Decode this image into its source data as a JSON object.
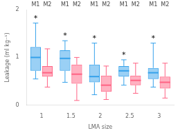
{
  "chart_data": {
    "type": "box",
    "xlabel": "LMA size",
    "ylabel": "Leakage (ml kg⁻¹)",
    "categories": [
      "1",
      "1.5",
      "2",
      "2.5",
      "3"
    ],
    "series": [
      {
        "name": "M1",
        "whislo": [
          0.55,
          0.48,
          0.22,
          0.42,
          0.38
        ],
        "q1": [
          0.72,
          0.72,
          0.48,
          0.6,
          0.55
        ],
        "med": [
          1.0,
          0.98,
          0.6,
          0.72,
          0.68
        ],
        "q3": [
          1.22,
          1.15,
          0.85,
          0.82,
          0.78
        ],
        "whishi": [
          1.72,
          1.35,
          1.3,
          0.95,
          1.3
        ]
      },
      {
        "name": "M2",
        "whislo": [
          0.38,
          0.1,
          0.12,
          0.25,
          0.15
        ],
        "q1": [
          0.6,
          0.45,
          0.28,
          0.42,
          0.35
        ],
        "med": [
          0.68,
          0.65,
          0.42,
          0.52,
          0.48
        ],
        "q3": [
          0.82,
          0.85,
          0.62,
          0.62,
          0.6
        ],
        "whishi": [
          1.18,
          1.0,
          0.82,
          0.88,
          0.88
        ]
      }
    ],
    "annotations": [
      {
        "text": "*",
        "series": "M1",
        "category": "1"
      },
      {
        "text": "*",
        "series": "M1",
        "category": "1.5"
      },
      {
        "text": "*",
        "series": "M1",
        "category": "2"
      },
      {
        "text": "*",
        "series": "M1",
        "category": "2.5"
      },
      {
        "text": "*",
        "series": "M1",
        "category": "3"
      }
    ],
    "ylim": [
      0,
      2
    ],
    "yticks": [
      0,
      1,
      2
    ],
    "grid": false
  }
}
